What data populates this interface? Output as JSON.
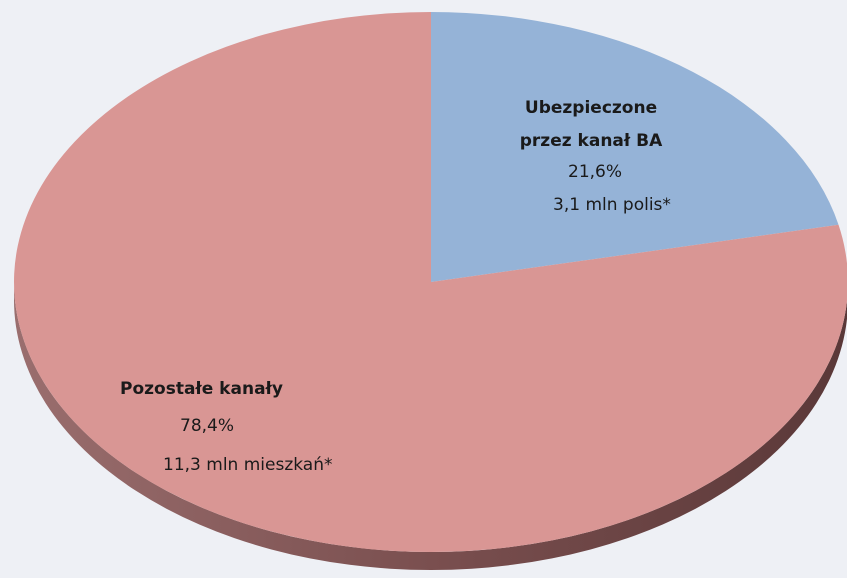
{
  "chart_data": {
    "type": "pie",
    "categories": [
      "Ubezpieczone przez kanał BA",
      "Pozostałe kanały"
    ],
    "values": [
      21.6,
      78.4
    ],
    "value_labels": [
      "21,6%",
      "78,4%"
    ],
    "annotations": [
      "3,1 mln polis*",
      "11,3 mln mieszkań*"
    ],
    "colors": [
      "#95b3d7",
      "#d99694"
    ]
  }
}
